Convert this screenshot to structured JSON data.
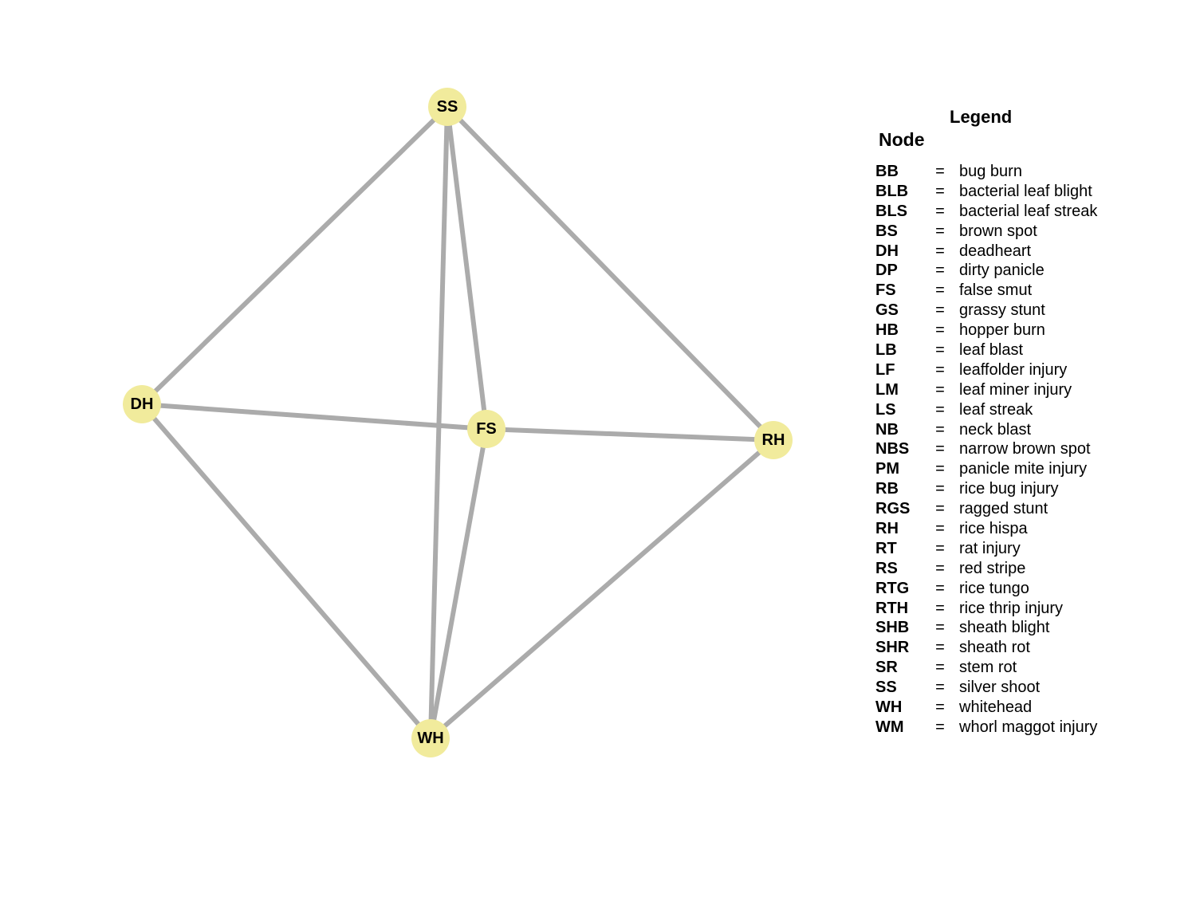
{
  "diagram": {
    "nodes": [
      {
        "id": "SS",
        "label": "SS"
      },
      {
        "id": "DH",
        "label": "DH"
      },
      {
        "id": "FS",
        "label": "FS"
      },
      {
        "id": "RH",
        "label": "RH"
      },
      {
        "id": "WH",
        "label": "WH"
      }
    ],
    "edges": [
      [
        "SS",
        "DH"
      ],
      [
        "SS",
        "FS"
      ],
      [
        "SS",
        "RH"
      ],
      [
        "SS",
        "WH"
      ],
      [
        "DH",
        "FS"
      ],
      [
        "DH",
        "WH"
      ],
      [
        "FS",
        "RH"
      ],
      [
        "FS",
        "WH"
      ],
      [
        "RH",
        "WH"
      ]
    ],
    "node_color": "#f1eb9c",
    "edge_color": "#ababab"
  },
  "legend": {
    "title": "Legend",
    "subtitle": "Node",
    "separator": "=",
    "entries": [
      {
        "code": "BB",
        "name": "bug burn"
      },
      {
        "code": "BLB",
        "name": "bacterial leaf blight"
      },
      {
        "code": "BLS",
        "name": "bacterial leaf streak"
      },
      {
        "code": "BS",
        "name": "brown spot"
      },
      {
        "code": "DH",
        "name": "deadheart"
      },
      {
        "code": "DP",
        "name": "dirty panicle"
      },
      {
        "code": "FS",
        "name": "false smut"
      },
      {
        "code": "GS",
        "name": "grassy stunt"
      },
      {
        "code": "HB",
        "name": "hopper burn"
      },
      {
        "code": "LB",
        "name": "leaf blast"
      },
      {
        "code": "LF",
        "name": "leaffolder injury"
      },
      {
        "code": "LM",
        "name": "leaf miner injury"
      },
      {
        "code": "LS",
        "name": "leaf streak"
      },
      {
        "code": "NB",
        "name": "neck blast"
      },
      {
        "code": "NBS",
        "name": "narrow brown spot"
      },
      {
        "code": "PM",
        "name": "panicle mite injury"
      },
      {
        "code": "RB",
        "name": "rice bug injury"
      },
      {
        "code": "RGS",
        "name": "ragged stunt"
      },
      {
        "code": "RH",
        "name": "rice hispa"
      },
      {
        "code": "RT",
        "name": "rat injury"
      },
      {
        "code": "RS",
        "name": "red stripe"
      },
      {
        "code": "RTG",
        "name": "rice tungo"
      },
      {
        "code": "RTH",
        "name": "rice thrip injury"
      },
      {
        "code": "SHB",
        "name": "sheath blight"
      },
      {
        "code": "SHR",
        "name": "sheath rot"
      },
      {
        "code": "SR",
        "name": "stem rot"
      },
      {
        "code": "SS",
        "name": "silver shoot"
      },
      {
        "code": "WH",
        "name": "whitehead"
      },
      {
        "code": "WM",
        "name": "whorl maggot injury"
      }
    ]
  }
}
